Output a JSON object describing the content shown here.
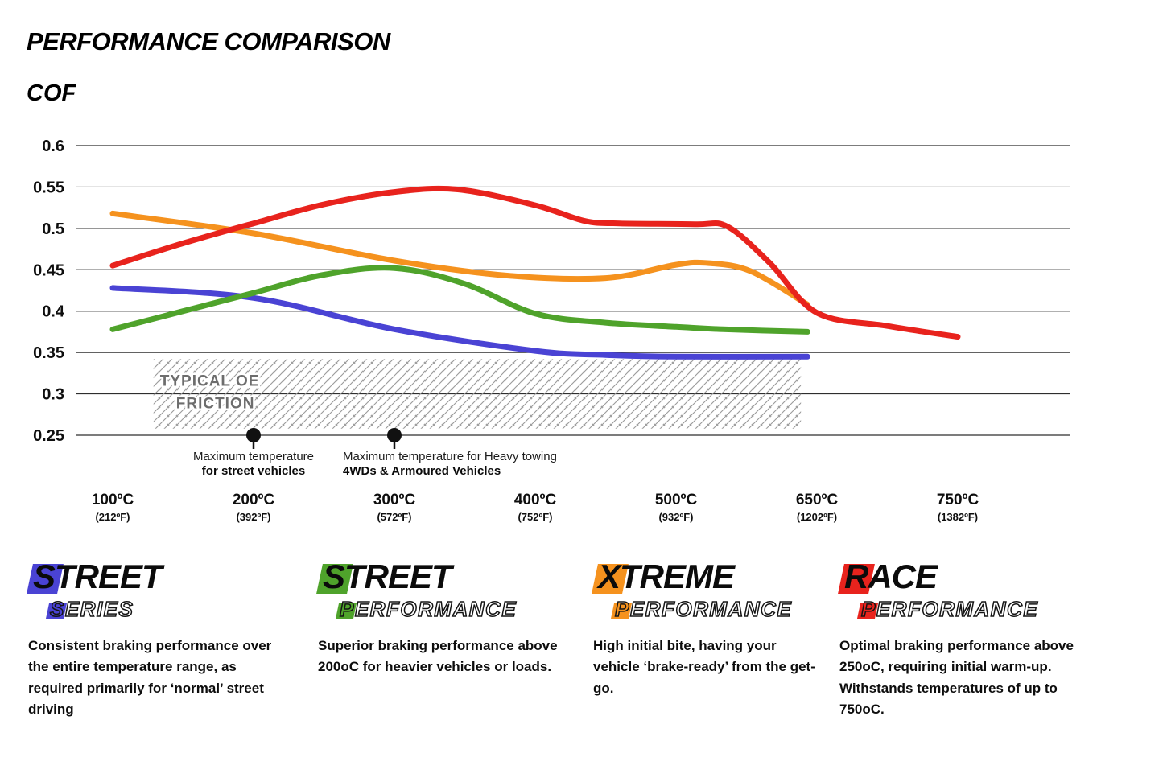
{
  "chart_data": {
    "type": "line",
    "title": "PERFORMANCE COMPARISON",
    "ylabel": "COF",
    "xlabel": "",
    "ylim": [
      0.25,
      0.6
    ],
    "yticks": [
      0.6,
      0.55,
      0.5,
      0.45,
      0.4,
      0.35,
      0.3,
      0.25
    ],
    "grid": true,
    "legend_position": "bottom",
    "x_axis": {
      "temps": [
        100,
        200,
        300,
        400,
        500,
        650,
        750
      ],
      "labels_c": [
        "100ºC",
        "200ºC",
        "300ºC",
        "400ºC",
        "500ºC",
        "650ºC",
        "750ºC"
      ],
      "labels_f": [
        "(212ºF)",
        "(392ºF)",
        "(572ºF)",
        "(752ºF)",
        "(932ºF)",
        "(1202ºF)",
        "(1382ºF)"
      ]
    },
    "series": [
      {
        "name": "Street Series",
        "color": "#4a43d4",
        "points": [
          [
            100,
            0.428
          ],
          [
            200,
            0.416
          ],
          [
            300,
            0.378
          ],
          [
            400,
            0.352
          ],
          [
            450,
            0.347
          ],
          [
            500,
            0.345
          ],
          [
            640,
            0.345
          ]
        ]
      },
      {
        "name": "Street Performance",
        "color": "#4fa32b",
        "points": [
          [
            100,
            0.378
          ],
          [
            150,
            0.4
          ],
          [
            200,
            0.422
          ],
          [
            250,
            0.444
          ],
          [
            300,
            0.452
          ],
          [
            350,
            0.433
          ],
          [
            400,
            0.397
          ],
          [
            450,
            0.386
          ],
          [
            500,
            0.381
          ],
          [
            550,
            0.378
          ],
          [
            640,
            0.375
          ]
        ]
      },
      {
        "name": "Xtreme Performance",
        "color": "#f5921e",
        "points": [
          [
            100,
            0.518
          ],
          [
            200,
            0.494
          ],
          [
            300,
            0.461
          ],
          [
            380,
            0.443
          ],
          [
            450,
            0.44
          ],
          [
            500,
            0.456
          ],
          [
            535,
            0.458
          ],
          [
            580,
            0.448
          ],
          [
            640,
            0.408
          ]
        ]
      },
      {
        "name": "Race Performance",
        "color": "#e8231d",
        "points": [
          [
            100,
            0.455
          ],
          [
            150,
            0.482
          ],
          [
            200,
            0.506
          ],
          [
            250,
            0.529
          ],
          [
            300,
            0.544
          ],
          [
            345,
            0.547
          ],
          [
            400,
            0.528
          ],
          [
            435,
            0.509
          ],
          [
            460,
            0.506
          ],
          [
            520,
            0.505
          ],
          [
            555,
            0.502
          ],
          [
            600,
            0.458
          ],
          [
            650,
            0.398
          ],
          [
            700,
            0.382
          ],
          [
            750,
            0.369
          ]
        ]
      }
    ],
    "oe_region": {
      "label_line1": "TYPICAL OE",
      "label_line2": "FRICTION",
      "x_range_temps": [
        129,
        633
      ],
      "y_top": 0.342,
      "y_bottom": 0.258
    },
    "annotations": [
      {
        "temp": 200,
        "line1": "Maximum temperature",
        "line2": "for street vehicles",
        "align": "center"
      },
      {
        "temp": 300,
        "line1": "Maximum temperature for Heavy towing",
        "line2": "4WDs & Armoured Vehicles",
        "align": "left"
      }
    ]
  },
  "products": [
    {
      "initial1": "S",
      "rest1": "TREET",
      "initial2": "S",
      "rest2": "ERIES",
      "color": "#4a43d4",
      "description": "Consistent braking performance over the entire temperature range, as required primarily for ‘normal’ street driving"
    },
    {
      "initial1": "S",
      "rest1": "TREET",
      "initial2": "P",
      "rest2": "ERFORMANCE",
      "color": "#4fa32b",
      "description": "Superior braking performance above 200oC for heavier vehicles or loads."
    },
    {
      "initial1": "X",
      "rest1": "TREME",
      "initial2": "P",
      "rest2": "ERFORMANCE",
      "color": "#f5921e",
      "description": "High initial bite, having your vehicle ‘brake-ready’ from the get-go."
    },
    {
      "initial1": "R",
      "rest1": "ACE",
      "initial2": "P",
      "rest2": "ERFORMANCE",
      "color": "#e8231d",
      "description": "Optimal braking performance above 250oC, requiring initial warm-up. Withstands temperatures of up to 750oC."
    }
  ]
}
